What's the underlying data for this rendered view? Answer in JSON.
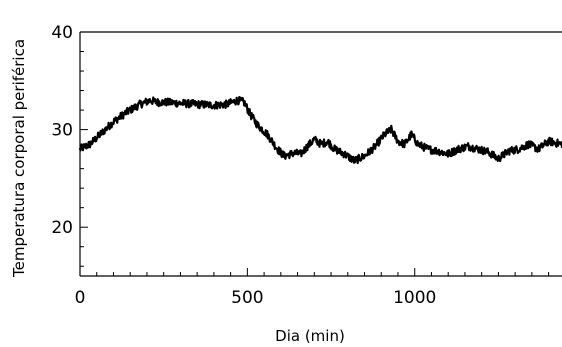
{
  "chart_data": {
    "type": "line",
    "title": "",
    "xlabel": "Dia (min)",
    "ylabel": "Temperatura  corporal periférica",
    "xlim": [
      0,
      1440
    ],
    "ylim": [
      15,
      40
    ],
    "x_ticks": [
      0,
      500,
      1000
    ],
    "x_tick_labels": [
      "0",
      "500",
      "1000"
    ],
    "x_minor_step": 50,
    "y_ticks": [
      20,
      30,
      40
    ],
    "y_tick_labels": [
      "20",
      "30",
      "40"
    ],
    "y_minor_step": 2,
    "grid": false,
    "legend": "none",
    "series": [
      {
        "color": "#000000",
        "noise_band": 0.8,
        "x": [
          0,
          30,
          60,
          100,
          140,
          180,
          210,
          230,
          260,
          300,
          350,
          400,
          440,
          470,
          490,
          510,
          530,
          560,
          590,
          610,
          640,
          660,
          680,
          700,
          720,
          740,
          760,
          790,
          820,
          850,
          880,
          910,
          930,
          950,
          970,
          990,
          1010,
          1040,
          1070,
          1100,
          1130,
          1160,
          1190,
          1220,
          1250,
          1280,
          1310,
          1340,
          1370,
          1400,
          1440
        ],
        "y": [
          28.0,
          28.5,
          29.5,
          30.8,
          31.8,
          32.6,
          33.0,
          32.8,
          32.8,
          32.7,
          32.6,
          32.5,
          32.6,
          33.0,
          32.8,
          31.5,
          30.5,
          29.5,
          28.0,
          27.3,
          27.6,
          27.5,
          28.3,
          29.0,
          28.5,
          28.8,
          28.0,
          27.5,
          26.8,
          27.3,
          28.2,
          29.5,
          30.0,
          28.8,
          28.5,
          29.5,
          28.5,
          28.0,
          27.8,
          27.5,
          28.0,
          28.3,
          28.0,
          27.7,
          27.0,
          27.8,
          28.0,
          28.5,
          28.0,
          28.8,
          28.5
        ]
      }
    ]
  }
}
